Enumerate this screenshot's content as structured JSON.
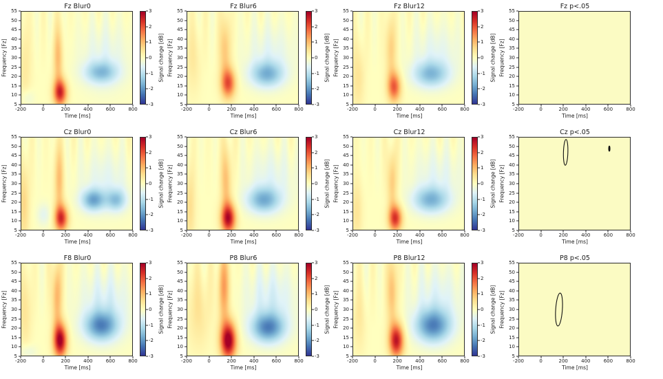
{
  "chart_data": {
    "type": "heatmap-grid",
    "description": "Time-frequency EEG spectral change maps (3 electrodes x 3 blur conditions) with significance-contour panels",
    "x": {
      "label": "Time [ms]",
      "range": [
        -200,
        800
      ],
      "ticks": [
        -200,
        0,
        200,
        400,
        600,
        800
      ]
    },
    "y": {
      "label": "Frequency [Fz]",
      "range": [
        5,
        55
      ],
      "ticks": [
        55,
        50,
        45,
        40,
        35,
        30,
        25,
        20,
        15,
        10,
        5
      ]
    },
    "colorbar": {
      "label": "Signal change [dB]",
      "range": [
        -3,
        3
      ],
      "ticks": [
        3,
        2,
        1,
        0,
        -1,
        -2,
        -3
      ]
    },
    "colormap": [
      "#313695",
      "#4575b4",
      "#74add1",
      "#abd9e9",
      "#e0f3f8",
      "#ffffbf",
      "#fee090",
      "#fdae61",
      "#f46d43",
      "#d73027",
      "#a50026"
    ],
    "sig_background": "#fbfbc3",
    "contour_color": "#111111",
    "subplots": [
      {
        "kind": "heatmap",
        "title": "Fz Blur0",
        "electrode": "Fz",
        "condition": "Blur0",
        "seed": 1,
        "stripes": 0.22,
        "blobs": [
          {
            "t": 150,
            "f": 11,
            "st": 60,
            "sf": 7,
            "a": 2.4
          },
          {
            "t": 130,
            "f": 30,
            "st": 45,
            "sf": 18,
            "a": 1.0
          },
          {
            "t": 520,
            "f": 22,
            "st": 150,
            "sf": 6,
            "a": -1.3
          },
          {
            "t": 550,
            "f": 30,
            "st": 220,
            "sf": 18,
            "a": -0.5
          },
          {
            "t": -170,
            "f": 25,
            "st": 60,
            "sf": 25,
            "a": 0.4
          },
          {
            "t": -150,
            "f": 8,
            "st": 60,
            "sf": 5,
            "a": -0.4
          }
        ]
      },
      {
        "kind": "heatmap",
        "title": "Fz Blur6",
        "electrode": "Fz",
        "condition": "Blur6",
        "seed": 2,
        "stripes": 0.22,
        "blobs": [
          {
            "t": 170,
            "f": 16,
            "st": 65,
            "sf": 8,
            "a": 2.0
          },
          {
            "t": 140,
            "f": 35,
            "st": 55,
            "sf": 18,
            "a": 0.9
          },
          {
            "t": 520,
            "f": 21,
            "st": 150,
            "sf": 7,
            "a": -1.5
          },
          {
            "t": 550,
            "f": 32,
            "st": 220,
            "sf": 16,
            "a": -0.5
          },
          {
            "t": -150,
            "f": 30,
            "st": 70,
            "sf": 20,
            "a": 0.4
          }
        ]
      },
      {
        "kind": "heatmap",
        "title": "Fz Blur12",
        "electrode": "Fz",
        "condition": "Blur12",
        "seed": 3,
        "stripes": 0.22,
        "blobs": [
          {
            "t": 170,
            "f": 14,
            "st": 60,
            "sf": 8,
            "a": 1.9
          },
          {
            "t": 140,
            "f": 35,
            "st": 50,
            "sf": 18,
            "a": 0.8
          },
          {
            "t": 500,
            "f": 21,
            "st": 160,
            "sf": 7,
            "a": -1.4
          },
          {
            "t": 550,
            "f": 32,
            "st": 220,
            "sf": 16,
            "a": -0.5
          },
          {
            "t": -160,
            "f": 20,
            "st": 60,
            "sf": 20,
            "a": 0.5
          }
        ]
      },
      {
        "kind": "significance",
        "title": "Fz p<.05",
        "electrode": "Fz",
        "contours": []
      },
      {
        "kind": "heatmap",
        "title": "Cz Blur0",
        "electrode": "Cz",
        "condition": "Blur0",
        "seed": 4,
        "stripes": 0.24,
        "blobs": [
          {
            "t": 160,
            "f": 11,
            "st": 60,
            "sf": 7,
            "a": 2.3
          },
          {
            "t": 140,
            "f": 32,
            "st": 45,
            "sf": 20,
            "a": 1.0
          },
          {
            "t": 450,
            "f": 21,
            "st": 110,
            "sf": 6,
            "a": -1.7
          },
          {
            "t": 660,
            "f": 21,
            "st": 90,
            "sf": 6,
            "a": -1.3
          },
          {
            "t": 560,
            "f": 32,
            "st": 230,
            "sf": 16,
            "a": -0.5
          },
          {
            "t": -180,
            "f": 20,
            "st": 50,
            "sf": 25,
            "a": 0.7
          },
          {
            "t": 0,
            "f": 13,
            "st": 60,
            "sf": 6,
            "a": -0.5
          }
        ]
      },
      {
        "kind": "heatmap",
        "title": "Cz Blur6",
        "electrode": "Cz",
        "condition": "Blur6",
        "seed": 5,
        "stripes": 0.24,
        "blobs": [
          {
            "t": 170,
            "f": 11,
            "st": 65,
            "sf": 8,
            "a": 2.7
          },
          {
            "t": 150,
            "f": 32,
            "st": 50,
            "sf": 20,
            "a": 1.0
          },
          {
            "t": 490,
            "f": 21,
            "st": 150,
            "sf": 7,
            "a": -1.6
          },
          {
            "t": 560,
            "f": 33,
            "st": 230,
            "sf": 16,
            "a": -0.5
          },
          {
            "t": -180,
            "f": 18,
            "st": 50,
            "sf": 22,
            "a": 0.6
          }
        ]
      },
      {
        "kind": "heatmap",
        "title": "Cz Blur12",
        "electrode": "Cz",
        "condition": "Blur12",
        "seed": 6,
        "stripes": 0.24,
        "blobs": [
          {
            "t": 180,
            "f": 11,
            "st": 60,
            "sf": 7,
            "a": 2.3
          },
          {
            "t": 150,
            "f": 32,
            "st": 45,
            "sf": 18,
            "a": 0.9
          },
          {
            "t": 500,
            "f": 21,
            "st": 160,
            "sf": 7,
            "a": -1.5
          },
          {
            "t": 560,
            "f": 33,
            "st": 230,
            "sf": 16,
            "a": -0.5
          },
          {
            "t": -170,
            "f": 15,
            "st": 50,
            "sf": 18,
            "a": 0.5
          }
        ]
      },
      {
        "kind": "significance",
        "title": "Cz p<.05",
        "electrode": "Cz",
        "contours": [
          {
            "t": 220,
            "f": 47,
            "rt": 20,
            "rf": 7,
            "rot": 3,
            "filled": false
          },
          {
            "t": 614,
            "f": 49,
            "rt": 6,
            "rf": 1.4,
            "rot": 0,
            "filled": true
          }
        ]
      },
      {
        "kind": "heatmap",
        "title": "F8 Blur0",
        "electrode": "F8",
        "condition": "Blur0",
        "seed": 7,
        "stripes": 0.26,
        "blobs": [
          {
            "t": 150,
            "f": 13,
            "st": 60,
            "sf": 9,
            "a": 3.0
          },
          {
            "t": 120,
            "f": 38,
            "st": 45,
            "sf": 20,
            "a": 1.2
          },
          {
            "t": 520,
            "f": 21,
            "st": 150,
            "sf": 8,
            "a": -1.9
          },
          {
            "t": 560,
            "f": 33,
            "st": 230,
            "sf": 18,
            "a": -0.7
          },
          {
            "t": -170,
            "f": 30,
            "st": 60,
            "sf": 22,
            "a": 0.5
          },
          {
            "t": -150,
            "f": 7,
            "st": 80,
            "sf": 4,
            "a": -0.4
          }
        ]
      },
      {
        "kind": "heatmap",
        "title": "P8 Blur6",
        "electrode": "P8",
        "condition": "Blur6",
        "seed": 8,
        "stripes": 0.26,
        "blobs": [
          {
            "t": 170,
            "f": 13,
            "st": 70,
            "sf": 10,
            "a": 3.2
          },
          {
            "t": 130,
            "f": 42,
            "st": 55,
            "sf": 20,
            "a": 1.3
          },
          {
            "t": 530,
            "f": 20,
            "st": 150,
            "sf": 8,
            "a": -2.0
          },
          {
            "t": 560,
            "f": 35,
            "st": 230,
            "sf": 18,
            "a": -0.7
          },
          {
            "t": -100,
            "f": 30,
            "st": 100,
            "sf": 22,
            "a": 0.5
          }
        ]
      },
      {
        "kind": "heatmap",
        "title": "P8 Blur12",
        "electrode": "P8",
        "condition": "Blur12",
        "seed": 9,
        "stripes": 0.26,
        "blobs": [
          {
            "t": 190,
            "f": 13,
            "st": 65,
            "sf": 9,
            "a": 2.7
          },
          {
            "t": 150,
            "f": 40,
            "st": 50,
            "sf": 20,
            "a": 1.0
          },
          {
            "t": 520,
            "f": 21,
            "st": 160,
            "sf": 9,
            "a": -2.0
          },
          {
            "t": 560,
            "f": 35,
            "st": 230,
            "sf": 18,
            "a": -0.6
          },
          {
            "t": -150,
            "f": 25,
            "st": 60,
            "sf": 20,
            "a": 0.4
          }
        ]
      },
      {
        "kind": "significance",
        "title": "P8 p<.05",
        "electrode": "P8",
        "contours": [
          {
            "t": 160,
            "f": 30,
            "rt": 30,
            "rf": 9,
            "rot": 7,
            "filled": false
          }
        ]
      }
    ]
  }
}
